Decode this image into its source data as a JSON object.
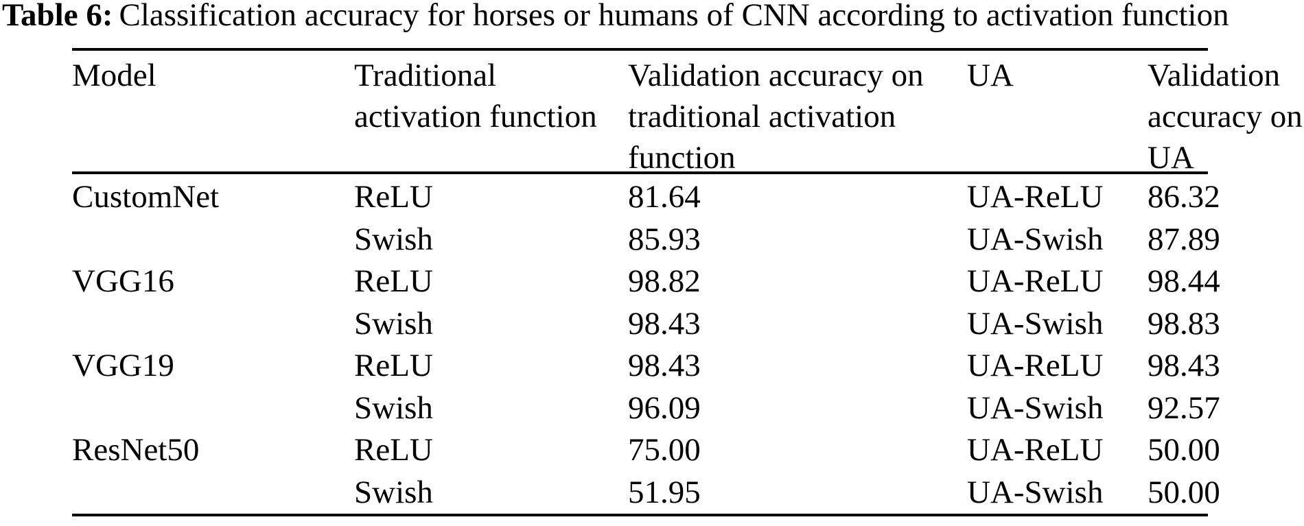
{
  "caption": {
    "label": "Table 6:",
    "text": "Classification accuracy for horses or humans of CNN according to activation function"
  },
  "table": {
    "headers": {
      "model": "Model",
      "traditional": "Traditional\nactivation function",
      "val_traditional": "Validation accuracy on\ntraditional activation\nfunction",
      "ua": "UA",
      "val_ua": "Validation\naccuracy on\nUA"
    },
    "rows": [
      {
        "model": "CustomNet",
        "activation": "ReLU",
        "val_traditional": "81.64",
        "ua": "UA-ReLU",
        "val_ua": "86.32"
      },
      {
        "model": "",
        "activation": "Swish",
        "val_traditional": "85.93",
        "ua": "UA-Swish",
        "val_ua": "87.89"
      },
      {
        "model": "VGG16",
        "activation": "ReLU",
        "val_traditional": "98.82",
        "ua": "UA-ReLU",
        "val_ua": "98.44"
      },
      {
        "model": "",
        "activation": "Swish",
        "val_traditional": "98.43",
        "ua": "UA-Swish",
        "val_ua": "98.83"
      },
      {
        "model": "VGG19",
        "activation": "ReLU",
        "val_traditional": "98.43",
        "ua": "UA-ReLU",
        "val_ua": "98.43"
      },
      {
        "model": "",
        "activation": "Swish",
        "val_traditional": "96.09",
        "ua": "UA-Swish",
        "val_ua": "92.57"
      },
      {
        "model": "ResNet50",
        "activation": "ReLU",
        "val_traditional": "75.00",
        "ua": "UA-ReLU",
        "val_ua": "50.00"
      },
      {
        "model": "",
        "activation": "Swish",
        "val_traditional": "51.95",
        "ua": "UA-Swish",
        "val_ua": "50.00"
      }
    ]
  },
  "colors": {
    "text": "#000000",
    "background": "#ffffff",
    "rule": "#000000"
  }
}
